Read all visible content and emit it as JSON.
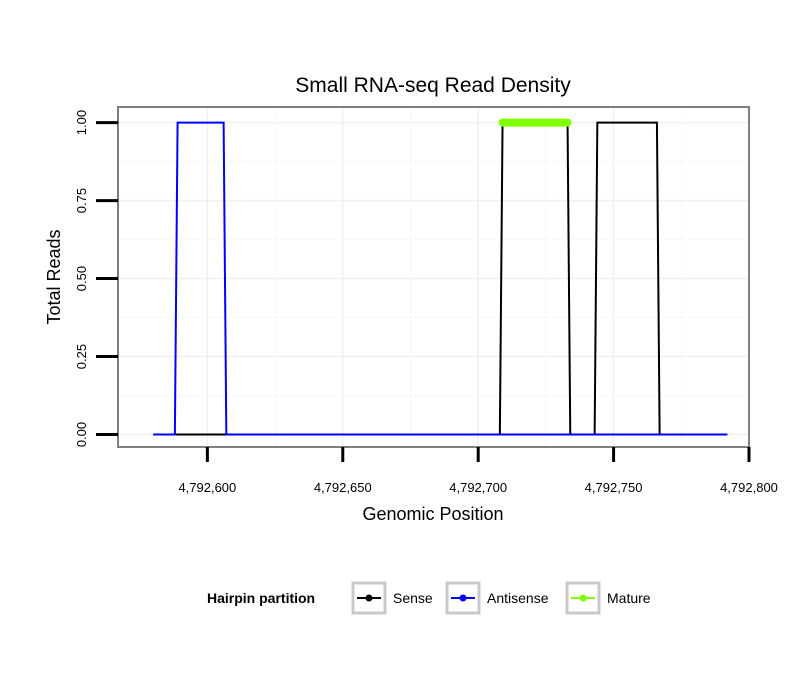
{
  "chart_data": {
    "type": "line",
    "title": "Small RNA-seq Read Density",
    "xlabel": "Genomic Position",
    "ylabel": "Total Reads",
    "xlim": [
      4792567,
      4792800
    ],
    "ylim": [
      -0.04,
      1.05
    ],
    "x_ticks": [
      4792600,
      4792650,
      4792700,
      4792750,
      4792800
    ],
    "x_tick_labels": [
      "4,792,600",
      "4,792,650",
      "4,792,700",
      "4,792,750",
      "4,792,800"
    ],
    "y_ticks": [
      0,
      0.25,
      0.5,
      0.75,
      1
    ],
    "y_tick_labels": [
      "0.00",
      "0.25",
      "0.50",
      "0.75",
      "1.00"
    ],
    "grid": true,
    "series": [
      {
        "name": "Sense",
        "color": "#000000",
        "x": [
          4792580,
          4792708,
          4792709,
          4792733,
          4792734,
          4792743,
          4792744,
          4792766,
          4792767,
          4792792
        ],
        "values": [
          0,
          0,
          1,
          1,
          0,
          0,
          1,
          1,
          0,
          0
        ]
      },
      {
        "name": "Antisense",
        "color": "#0000ff",
        "x": [
          4792580,
          4792588,
          4792589,
          4792606,
          4792607,
          4792792
        ],
        "values": [
          0,
          0,
          1,
          1,
          0,
          0
        ]
      },
      {
        "name": "Mature",
        "color": "#7fff00",
        "x": [
          4792709,
          4792733
        ],
        "values": [
          1,
          1
        ]
      }
    ],
    "legend": {
      "title": "Hairpin partition",
      "placement": "bottom",
      "entries": [
        "Sense",
        "Antisense",
        "Mature"
      ]
    }
  }
}
